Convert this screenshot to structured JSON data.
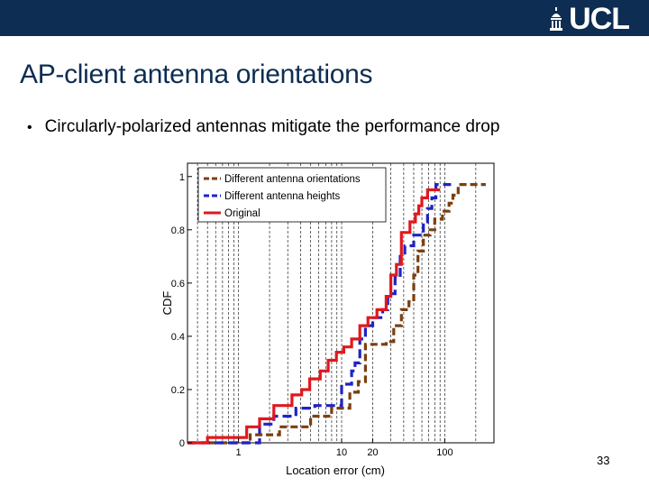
{
  "header": {
    "logo_text": "UCL",
    "brand_color": "#0d2d52"
  },
  "slide": {
    "title": "AP-client antenna orientations",
    "bullet": "Circularly-polarized antennas mitigate the performance drop",
    "bullet_marker": "•",
    "page_number": "33"
  },
  "chart_data": {
    "type": "line",
    "xscale": "log",
    "xlabel": "Location error (cm)",
    "ylabel": "CDF",
    "xlim": [
      0.32,
      300
    ],
    "ylim": [
      0,
      1.05
    ],
    "grid": "vertical",
    "legend_position": "top-left",
    "x_ticks": [
      {
        "value": 1,
        "label": "1"
      },
      {
        "value": 10,
        "label": "10"
      },
      {
        "value": 20,
        "label": "20"
      },
      {
        "value": 100,
        "label": "100"
      }
    ],
    "y_ticks": [
      {
        "value": 0,
        "label": "0"
      },
      {
        "value": 0.2,
        "label": "0.2"
      },
      {
        "value": 0.4,
        "label": "0.4"
      },
      {
        "value": 0.6,
        "label": "0.6"
      },
      {
        "value": 0.8,
        "label": "0.8"
      },
      {
        "value": 1,
        "label": "1"
      }
    ],
    "series": [
      {
        "name": "Different antenna orientations",
        "color": "#7b3f10",
        "dash": "8,4",
        "points": [
          [
            0.32,
            0.0
          ],
          [
            1.3,
            0.0
          ],
          [
            1.3,
            0.03
          ],
          [
            2.5,
            0.03
          ],
          [
            2.5,
            0.06
          ],
          [
            5,
            0.06
          ],
          [
            5,
            0.1
          ],
          [
            8,
            0.1
          ],
          [
            8,
            0.13
          ],
          [
            12,
            0.13
          ],
          [
            12,
            0.19
          ],
          [
            14.5,
            0.19
          ],
          [
            14.5,
            0.23
          ],
          [
            17,
            0.23
          ],
          [
            17,
            0.37
          ],
          [
            27,
            0.37
          ],
          [
            27,
            0.38
          ],
          [
            32,
            0.38
          ],
          [
            32,
            0.44
          ],
          [
            38,
            0.44
          ],
          [
            38,
            0.5
          ],
          [
            45,
            0.5
          ],
          [
            45,
            0.53
          ],
          [
            50,
            0.53
          ],
          [
            50,
            0.63
          ],
          [
            55,
            0.63
          ],
          [
            55,
            0.72
          ],
          [
            62,
            0.72
          ],
          [
            62,
            0.78
          ],
          [
            72,
            0.78
          ],
          [
            72,
            0.8
          ],
          [
            80,
            0.8
          ],
          [
            80,
            0.84
          ],
          [
            95,
            0.84
          ],
          [
            95,
            0.87
          ],
          [
            110,
            0.87
          ],
          [
            110,
            0.9
          ],
          [
            120,
            0.9
          ],
          [
            120,
            0.93
          ],
          [
            135,
            0.93
          ],
          [
            135,
            0.97
          ],
          [
            250,
            0.97
          ]
        ]
      },
      {
        "name": "Different antenna heights",
        "color": "#1f23c4",
        "dash": "10,5",
        "points": [
          [
            0.32,
            0.0
          ],
          [
            1.6,
            0.0
          ],
          [
            1.6,
            0.07
          ],
          [
            2.2,
            0.07
          ],
          [
            2.2,
            0.1
          ],
          [
            3.6,
            0.1
          ],
          [
            3.6,
            0.13
          ],
          [
            5.5,
            0.13
          ],
          [
            5.5,
            0.14
          ],
          [
            10,
            0.14
          ],
          [
            10,
            0.22
          ],
          [
            12.5,
            0.22
          ],
          [
            12.5,
            0.27
          ],
          [
            13.5,
            0.27
          ],
          [
            13.5,
            0.3
          ],
          [
            15,
            0.3
          ],
          [
            15,
            0.39
          ],
          [
            17,
            0.39
          ],
          [
            17,
            0.44
          ],
          [
            20,
            0.44
          ],
          [
            20,
            0.47
          ],
          [
            25,
            0.47
          ],
          [
            25,
            0.5
          ],
          [
            28,
            0.5
          ],
          [
            28,
            0.56
          ],
          [
            33,
            0.56
          ],
          [
            33,
            0.62
          ],
          [
            37,
            0.62
          ],
          [
            37,
            0.7
          ],
          [
            41,
            0.7
          ],
          [
            41,
            0.74
          ],
          [
            50,
            0.74
          ],
          [
            50,
            0.78
          ],
          [
            62,
            0.78
          ],
          [
            62,
            0.83
          ],
          [
            68,
            0.83
          ],
          [
            68,
            0.88
          ],
          [
            75,
            0.88
          ],
          [
            75,
            0.92
          ],
          [
            82,
            0.92
          ],
          [
            82,
            0.97
          ],
          [
            115,
            0.97
          ]
        ]
      },
      {
        "name": "Original",
        "color": "#e0181e",
        "dash": "",
        "points": [
          [
            0.32,
            0.0
          ],
          [
            0.5,
            0.0
          ],
          [
            0.5,
            0.02
          ],
          [
            1.2,
            0.02
          ],
          [
            1.2,
            0.06
          ],
          [
            1.6,
            0.06
          ],
          [
            1.6,
            0.09
          ],
          [
            2.2,
            0.09
          ],
          [
            2.2,
            0.14
          ],
          [
            3.3,
            0.14
          ],
          [
            3.3,
            0.18
          ],
          [
            4.1,
            0.18
          ],
          [
            4.1,
            0.2
          ],
          [
            4.9,
            0.2
          ],
          [
            4.9,
            0.24
          ],
          [
            6.2,
            0.24
          ],
          [
            6.2,
            0.27
          ],
          [
            7.4,
            0.27
          ],
          [
            7.4,
            0.31
          ],
          [
            8.9,
            0.31
          ],
          [
            8.9,
            0.34
          ],
          [
            10.5,
            0.34
          ],
          [
            10.5,
            0.36
          ],
          [
            12.5,
            0.36
          ],
          [
            12.5,
            0.39
          ],
          [
            15,
            0.39
          ],
          [
            15,
            0.44
          ],
          [
            18,
            0.44
          ],
          [
            18,
            0.47
          ],
          [
            22,
            0.47
          ],
          [
            22,
            0.5
          ],
          [
            27,
            0.5
          ],
          [
            27,
            0.55
          ],
          [
            30,
            0.55
          ],
          [
            30,
            0.63
          ],
          [
            34,
            0.63
          ],
          [
            34,
            0.67
          ],
          [
            38,
            0.67
          ],
          [
            38,
            0.79
          ],
          [
            46,
            0.79
          ],
          [
            46,
            0.83
          ],
          [
            52,
            0.83
          ],
          [
            52,
            0.86
          ],
          [
            56,
            0.86
          ],
          [
            56,
            0.89
          ],
          [
            60,
            0.89
          ],
          [
            60,
            0.92
          ],
          [
            68,
            0.92
          ],
          [
            68,
            0.95
          ],
          [
            90,
            0.95
          ]
        ]
      }
    ]
  }
}
